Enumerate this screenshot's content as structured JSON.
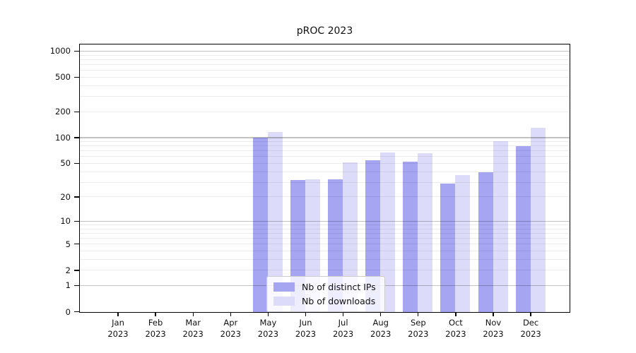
{
  "title": "pROC 2023",
  "chart_data": {
    "type": "bar",
    "title": "pROC 2023",
    "categories": [
      "Jan",
      "Feb",
      "Mar",
      "Apr",
      "May",
      "Jun",
      "Jul",
      "Aug",
      "Sep",
      "Oct",
      "Nov",
      "Dec"
    ],
    "year_label": "2023",
    "series": [
      {
        "name": "Nb of distinct IPs",
        "color": "#a5a5f2",
        "values": [
          0,
          0,
          0,
          0,
          100,
          32,
          33,
          55,
          53,
          29,
          40,
          81
        ]
      },
      {
        "name": "Nb of downloads",
        "color": "#dcdcfa",
        "values": [
          0,
          0,
          0,
          0,
          118,
          33,
          52,
          68,
          66,
          37,
          91,
          132
        ]
      }
    ],
    "xlabel": "",
    "ylabel": "",
    "y_scale": "log1p",
    "ylim": [
      0,
      1260
    ],
    "y_tick_values": [
      0,
      1,
      2,
      5,
      10,
      20,
      50,
      100,
      200,
      500,
      1000
    ],
    "y_tick_labels": [
      "0",
      "1",
      "2",
      "5",
      "10",
      "20",
      "50",
      "100",
      "200",
      "500",
      "1000"
    ],
    "grid": "horizontal; major lines at 1,10,100,1000; minor lines at mantissas 2-9",
    "legend_position": "lower center inside plot",
    "colors": {
      "major_grid": "rgba(0,0,0,0.24)",
      "minor_grid": "rgba(0,0,0,0.075)",
      "axis": "#000000",
      "background": "#ffffff"
    }
  }
}
